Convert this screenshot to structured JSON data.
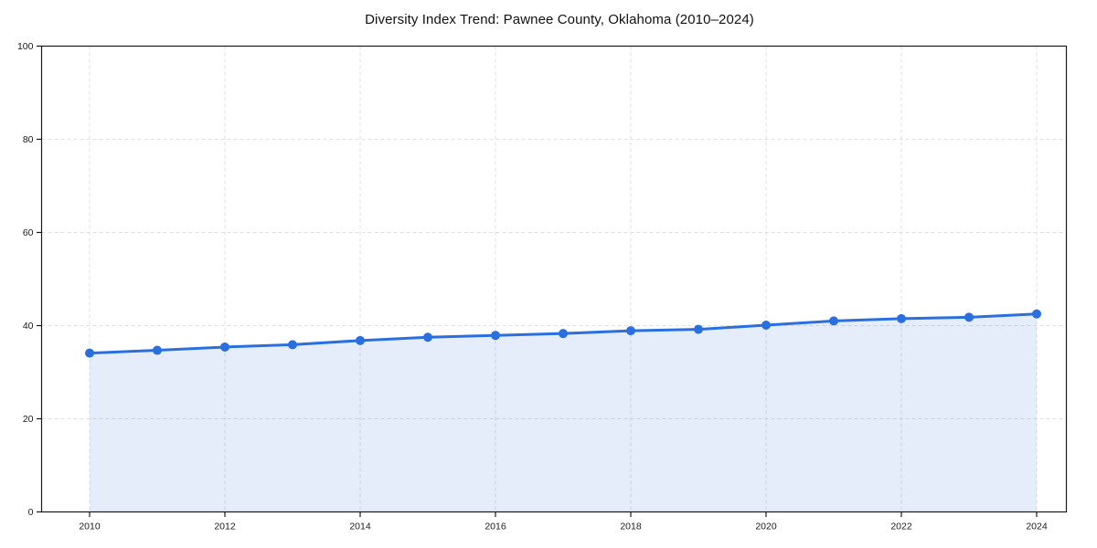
{
  "chart_data": {
    "type": "line",
    "title": "Diversity Index Trend: Pawnee County, Oklahoma (2010–2024)",
    "xlabel": "",
    "ylabel": "",
    "x": [
      2010,
      2011,
      2012,
      2013,
      2014,
      2015,
      2016,
      2017,
      2018,
      2019,
      2020,
      2021,
      2022,
      2023,
      2024
    ],
    "series": [
      {
        "name": "Diversity Index",
        "values": [
          34.1,
          34.7,
          35.4,
          35.9,
          36.8,
          37.5,
          37.9,
          38.3,
          38.9,
          39.2,
          40.1,
          41.0,
          41.5,
          41.8,
          42.5
        ]
      }
    ],
    "ylim": [
      0,
      100
    ],
    "yticks": [
      0,
      20,
      40,
      60,
      80,
      100
    ],
    "ytick_labels": [
      "0",
      "20",
      "40",
      "60",
      "80",
      "100"
    ],
    "xticks": [
      2010,
      2012,
      2014,
      2016,
      2018,
      2020,
      2022,
      2024
    ],
    "xtick_labels": [
      "2010",
      "2012",
      "2014",
      "2016",
      "2018",
      "2020",
      "2022",
      "2024"
    ],
    "grid": "dashed-both-axes",
    "legend": "none",
    "marker": "circle",
    "area_fill_below_line": true,
    "colors": {
      "line": "#2a6fdf",
      "marker": "#2a6fdf",
      "area_fill": "rgba(42, 111, 223, 0.12)",
      "grid": "#e0e0e0",
      "spine": "#1a1a1a",
      "tick_text": "#1a1a1a",
      "background": "#ffffff"
    }
  }
}
